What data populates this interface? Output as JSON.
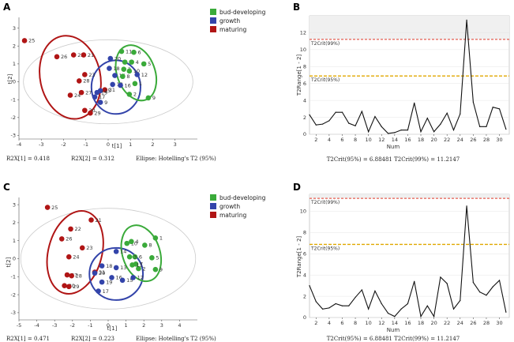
{
  "colors": {
    "bud": "#3aaa3a",
    "growth": "#3344aa",
    "maturing": "#b01515",
    "crit99": "#e03a2a",
    "crit95": "#e0a800",
    "ellipse": "#cccccc"
  },
  "chart_data": [
    {
      "panel": "A",
      "type": "scatter",
      "xlabel": "t[1]",
      "ylabel": "t[2]",
      "xlim": [
        -4,
        4
      ],
      "ylim": [
        -3.2,
        3.6
      ],
      "xticks": [
        -4,
        -3,
        -2,
        -1,
        0,
        1,
        2,
        3
      ],
      "yticks": [
        -3,
        -2,
        -1,
        0,
        1,
        2,
        3
      ],
      "footer": {
        "r2x1": "R2X[1] = 0.418",
        "r2x2": "R2X[2] = 0.312",
        "ellipse": "Ellipse: Hotelling's T2 (95%)"
      },
      "legend": [
        "bud-developing",
        "growth",
        "maturing"
      ],
      "points": [
        {
          "id": "25",
          "x": -3.75,
          "y": 2.3,
          "g": "maturing"
        },
        {
          "id": "26",
          "x": -2.3,
          "y": 1.4,
          "g": "maturing"
        },
        {
          "id": "22",
          "x": -1.55,
          "y": 1.5,
          "g": "maturing"
        },
        {
          "id": "21",
          "x": -1.1,
          "y": 1.5,
          "g": "maturing"
        },
        {
          "id": "23",
          "x": -1.05,
          "y": 0.4,
          "g": "maturing"
        },
        {
          "id": "28",
          "x": -1.3,
          "y": 0.05,
          "g": "maturing"
        },
        {
          "id": "27",
          "x": -1.2,
          "y": -0.6,
          "g": "maturing"
        },
        {
          "id": "24",
          "x": -1.7,
          "y": -0.75,
          "g": "maturing"
        },
        {
          "id": "30",
          "x": -1.05,
          "y": -1.6,
          "g": "maturing"
        },
        {
          "id": "29",
          "x": -0.8,
          "y": -1.75,
          "g": "maturing"
        },
        {
          "id": "31",
          "x": -0.15,
          "y": -0.45,
          "g": "maturing"
        },
        {
          "id": "20",
          "x": 0.1,
          "y": 1.3,
          "g": "growth"
        },
        {
          "id": "18",
          "x": 0.05,
          "y": 0.75,
          "g": "growth"
        },
        {
          "id": "14",
          "x": 0.3,
          "y": 0.35,
          "g": "growth"
        },
        {
          "id": "13",
          "x": 0.2,
          "y": -0.15,
          "g": "growth"
        },
        {
          "id": "15",
          "x": -0.35,
          "y": -0.5,
          "g": "growth"
        },
        {
          "id": "19",
          "x": -0.5,
          "y": -0.6,
          "g": "growth"
        },
        {
          "id": "9",
          "x": -0.35,
          "y": -1.15,
          "g": "growth"
        },
        {
          "id": "17",
          "x": -0.6,
          "y": -0.85,
          "g": "growth"
        },
        {
          "id": "16",
          "x": 0.55,
          "y": -0.2,
          "g": "growth"
        },
        {
          "id": "12",
          "x": 1.3,
          "y": 0.4,
          "g": "growth"
        },
        {
          "id": "11",
          "x": 0.6,
          "y": 1.7,
          "g": "bud"
        },
        {
          "id": "6",
          "x": 1.15,
          "y": 1.65,
          "g": "bud"
        },
        {
          "id": "5",
          "x": 1.6,
          "y": 1.0,
          "g": "bud"
        },
        {
          "id": "7",
          "x": 0.75,
          "y": 1.1,
          "g": "bud"
        },
        {
          "id": "4",
          "x": 1.05,
          "y": 1.1,
          "g": "bud"
        },
        {
          "id": "3",
          "x": 0.7,
          "y": 0.7,
          "g": "bud"
        },
        {
          "id": "10",
          "x": 0.95,
          "y": 0.6,
          "g": "bud"
        },
        {
          "id": "8",
          "x": 0.65,
          "y": 0.3,
          "g": "bud"
        },
        {
          "id": "1",
          "x": 1.2,
          "y": -0.1,
          "g": "bud"
        },
        {
          "id": "2",
          "x": 0.95,
          "y": -0.7,
          "g": "bud"
        },
        {
          "id": "9b",
          "label": "9",
          "x": 1.8,
          "y": -0.9,
          "g": "bud"
        }
      ],
      "ellipses": [
        {
          "g": "maturing",
          "cx": -1.7,
          "cy": 0.25,
          "rx": 1.35,
          "ry": 2.35,
          "rot": -12
        },
        {
          "g": "growth",
          "cx": 0.35,
          "cy": -0.3,
          "rx": 1.1,
          "ry": 1.5,
          "rot": 0
        },
        {
          "g": "bud",
          "cx": 1.25,
          "cy": 0.5,
          "rx": 0.85,
          "ry": 1.6,
          "rot": -20
        }
      ],
      "hotelling": {
        "rx": 3.8,
        "ry": 2.35
      }
    },
    {
      "panel": "B",
      "type": "line",
      "xlabel": "Num",
      "ylabel": "T2Range[1 - 2]",
      "xlim": [
        1,
        31.5
      ],
      "ylim": [
        0,
        14
      ],
      "xticks": [
        2,
        4,
        6,
        8,
        10,
        12,
        14,
        16,
        18,
        20,
        22,
        24,
        26,
        28,
        30
      ],
      "yticks": [
        0,
        2,
        4,
        6,
        8,
        10,
        12
      ],
      "crit99": 11.2147,
      "crit95": 6.88481,
      "crit99_label": "T2Crit(99%)",
      "crit95_label": "T2Crit(95%)",
      "footer": "T2Crit(95%) = 6.88481 T2Crit(99%) = 11.2147",
      "x": [
        1,
        2,
        3,
        4,
        5,
        6,
        7,
        8,
        9,
        10,
        11,
        12,
        13,
        14,
        15,
        16,
        17,
        18,
        19,
        20,
        21,
        22,
        23,
        24,
        25,
        26,
        27,
        28,
        29,
        30,
        31
      ],
      "values": [
        2.3,
        1.1,
        1.2,
        1.6,
        2.6,
        2.6,
        1.3,
        1.0,
        2.7,
        0.3,
        2.1,
        0.9,
        0.1,
        0.2,
        0.5,
        0.5,
        3.7,
        0.3,
        1.9,
        0.3,
        1.2,
        2.5,
        0.5,
        2.4,
        13.5,
        3.8,
        0.9,
        0.9,
        3.2,
        3.0,
        0.6
      ]
    },
    {
      "panel": "C",
      "type": "scatter",
      "xlabel": "t[1]",
      "ylabel": "t[2]",
      "xlim": [
        -5,
        5
      ],
      "ylim": [
        -3.4,
        3.4
      ],
      "xticks": [
        -5,
        -4,
        -3,
        -2,
        -1,
        0,
        1,
        2,
        3,
        4
      ],
      "yticks": [
        -3,
        -2,
        -1,
        0,
        1,
        2,
        3
      ],
      "footer": {
        "r2x1": "R2X[1] = 0.471",
        "r2x2": "R2X[2] = 0.223",
        "ellipse": "Ellipse: Hotelling's T2 (95%)"
      },
      "points": [
        {
          "id": "25",
          "x": -3.4,
          "y": 2.85,
          "g": "maturing"
        },
        {
          "id": "21",
          "x": -0.95,
          "y": 2.15,
          "g": "maturing"
        },
        {
          "id": "22",
          "x": -2.1,
          "y": 1.65,
          "g": "maturing"
        },
        {
          "id": "26",
          "x": -2.6,
          "y": 1.1,
          "g": "maturing"
        },
        {
          "id": "23",
          "x": -1.45,
          "y": 0.6,
          "g": "maturing"
        },
        {
          "id": "24",
          "x": -2.2,
          "y": 0.1,
          "g": "maturing"
        },
        {
          "id": "27",
          "x": -2.3,
          "y": -0.9,
          "g": "maturing"
        },
        {
          "id": "28",
          "x": -2.05,
          "y": -0.95,
          "g": "maturing"
        },
        {
          "id": "30",
          "x": -2.45,
          "y": -1.5,
          "g": "maturing"
        },
        {
          "id": "29",
          "x": -2.2,
          "y": -1.55,
          "g": "maturing"
        },
        {
          "id": "31",
          "x": -0.75,
          "y": -0.75,
          "g": "maturing"
        },
        {
          "id": "14",
          "x": 0.45,
          "y": 0.4,
          "g": "growth"
        },
        {
          "id": "18",
          "x": -0.35,
          "y": -0.4,
          "g": "growth"
        },
        {
          "id": "13",
          "x": 0.45,
          "y": -0.5,
          "g": "growth"
        },
        {
          "id": "19",
          "x": -0.35,
          "y": -1.3,
          "g": "growth"
        },
        {
          "id": "16",
          "x": 0.2,
          "y": -1.05,
          "g": "growth"
        },
        {
          "id": "15",
          "x": 0.8,
          "y": -1.2,
          "g": "growth"
        },
        {
          "id": "12",
          "x": 1.4,
          "y": -1.05,
          "g": "growth"
        },
        {
          "id": "17",
          "x": -0.55,
          "y": -1.8,
          "g": "growth"
        },
        {
          "id": "20",
          "x": -0.75,
          "y": -0.8,
          "g": "growth"
        },
        {
          "id": "10",
          "x": 1.05,
          "y": 0.85,
          "g": "bud"
        },
        {
          "id": "4",
          "x": 1.3,
          "y": 0.95,
          "g": "bud"
        },
        {
          "id": "8",
          "x": 2.05,
          "y": 0.75,
          "g": "bud"
        },
        {
          "id": "1",
          "x": 2.65,
          "y": 1.15,
          "g": "bud"
        },
        {
          "id": "5",
          "x": 2.45,
          "y": 0.05,
          "g": "bud"
        },
        {
          "id": "6",
          "x": 1.5,
          "y": 0.1,
          "g": "bud"
        },
        {
          "id": "3",
          "x": 1.2,
          "y": 0.1,
          "g": "bud"
        },
        {
          "id": "7",
          "x": 1.55,
          "y": -0.3,
          "g": "bud"
        },
        {
          "id": "2",
          "x": 1.7,
          "y": -0.55,
          "g": "bud"
        },
        {
          "id": "11",
          "x": 1.35,
          "y": -0.35,
          "g": "bud"
        },
        {
          "id": "9",
          "x": 2.65,
          "y": -0.6,
          "g": "bud"
        }
      ],
      "ellipses": [
        {
          "g": "maturing",
          "cx": -1.85,
          "cy": 0.35,
          "rx": 1.5,
          "ry": 2.35,
          "rot": 15
        },
        {
          "g": "growth",
          "cx": 0.45,
          "cy": -0.85,
          "rx": 1.5,
          "ry": 1.45,
          "rot": 0
        },
        {
          "g": "bud",
          "cx": 1.85,
          "cy": 0.3,
          "rx": 1.05,
          "ry": 1.6,
          "rot": -18
        }
      ],
      "hotelling": {
        "rx": 4.9,
        "ry": 2.8
      }
    },
    {
      "panel": "D",
      "type": "line",
      "xlabel": "Num",
      "ylabel": "T2Range[1 - 2]",
      "xlim": [
        1,
        31.5
      ],
      "ylim": [
        0,
        11.6
      ],
      "xticks": [
        2,
        4,
        6,
        8,
        10,
        12,
        14,
        16,
        18,
        20,
        22,
        24,
        26,
        28,
        30
      ],
      "yticks": [
        0,
        2,
        4,
        6,
        8,
        10
      ],
      "crit99": 11.2147,
      "crit95": 6.88481,
      "crit99_label": "T2Crit(99%)",
      "crit95_label": "T2Crit(95%)",
      "footer": "T2Crit(95%) = 6.88481 T2Crit(99%) = 11.2147",
      "x": [
        1,
        2,
        3,
        4,
        5,
        6,
        7,
        8,
        9,
        10,
        11,
        12,
        13,
        14,
        15,
        16,
        17,
        18,
        19,
        20,
        21,
        22,
        23,
        24,
        25,
        26,
        27,
        28,
        29,
        30,
        31
      ],
      "values": [
        3.0,
        1.5,
        0.8,
        0.9,
        1.3,
        1.1,
        1.1,
        1.9,
        2.6,
        0.8,
        2.5,
        1.3,
        0.4,
        0.1,
        0.8,
        1.3,
        3.4,
        0.1,
        1.1,
        0.1,
        3.8,
        3.2,
        0.8,
        1.6,
        10.5,
        3.3,
        2.4,
        2.1,
        2.9,
        3.5,
        0.5
      ]
    }
  ]
}
